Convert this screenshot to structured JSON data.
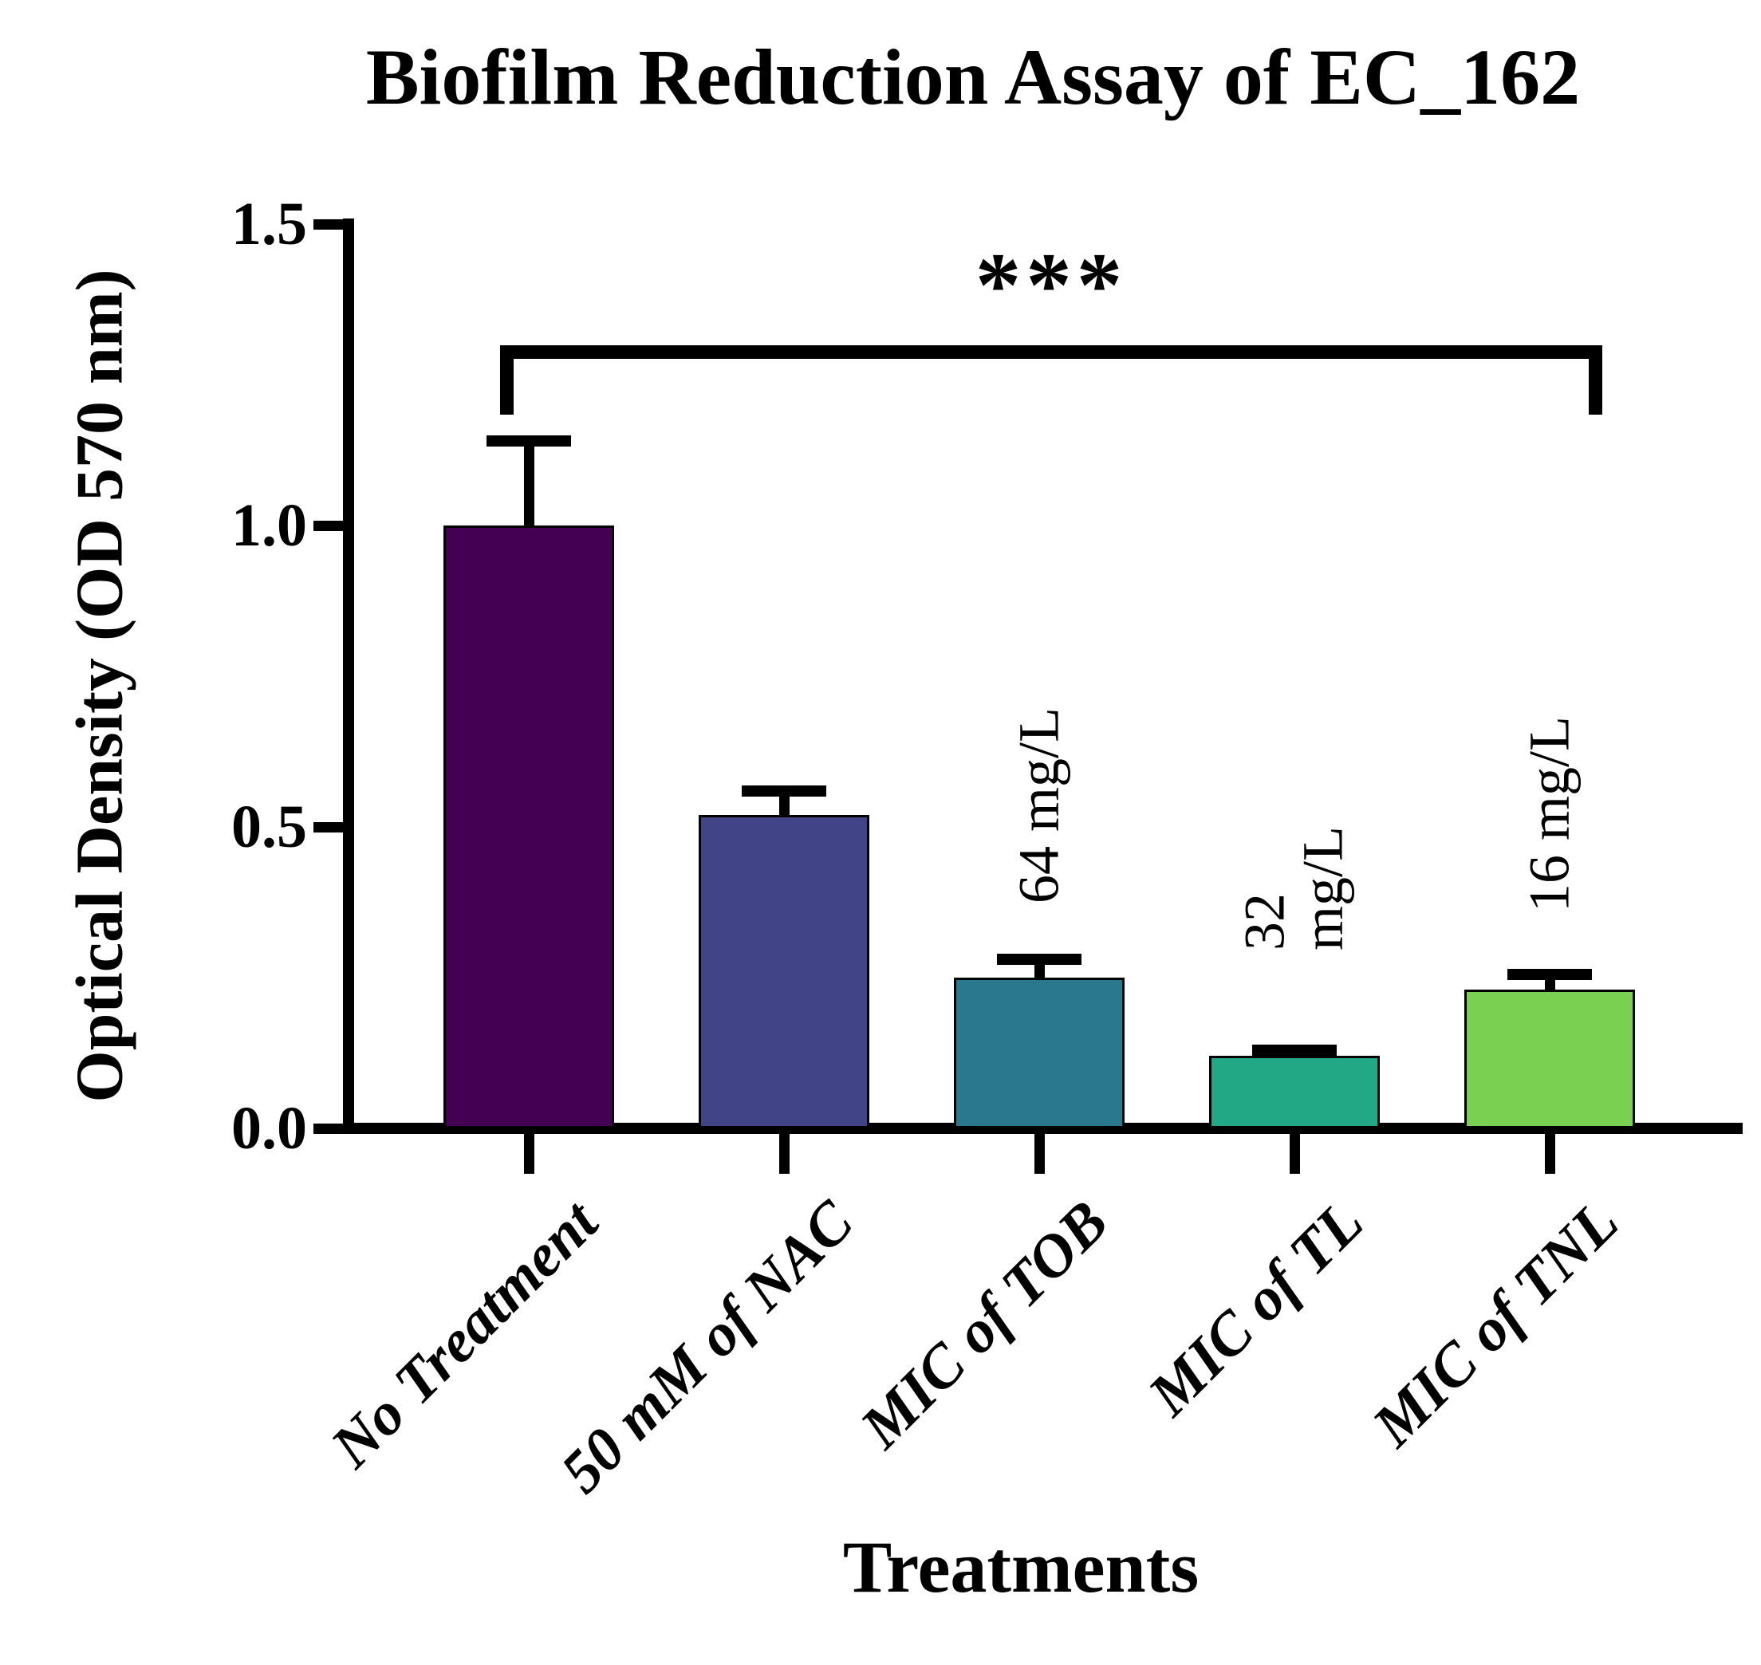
{
  "title": "Biofilm Reduction Assay of EC_162",
  "background_color": "#FFFFFF",
  "axis_color": "#000000",
  "chart_data": {
    "type": "bar",
    "title": "Biofilm Reduction Assay of EC_162",
    "xlabel": "Treatments",
    "ylabel": "Optical Density (OD 570 nm)",
    "ylim": [
      0,
      1.5
    ],
    "yticks": [
      0.0,
      0.5,
      1.0,
      1.5
    ],
    "ytick_labels": [
      "0.0",
      "0.5",
      "1.0",
      "1.5"
    ],
    "categories": [
      "No Treatment",
      "50 mM of NAC",
      "MIC of TOB",
      "MIC of TL",
      "MIC of TNL"
    ],
    "values": [
      1.0,
      0.52,
      0.25,
      0.12,
      0.23
    ],
    "errors": [
      0.14,
      0.04,
      0.03,
      0.01,
      0.025
    ],
    "bar_colors": [
      "#440154",
      "#414487",
      "#2A788E",
      "#22A884",
      "#7AD151"
    ],
    "bar_annotations": [
      "",
      "",
      "64 mg/L",
      "32\nmg/L",
      "16 mg/L"
    ],
    "significance": {
      "label": "***",
      "from": "No Treatment",
      "to": "MIC of TNL"
    },
    "grid": false,
    "legend": false,
    "error_bars": "upper only",
    "category_label_rotation_deg": 45,
    "annotation_rotation_deg": 90
  }
}
